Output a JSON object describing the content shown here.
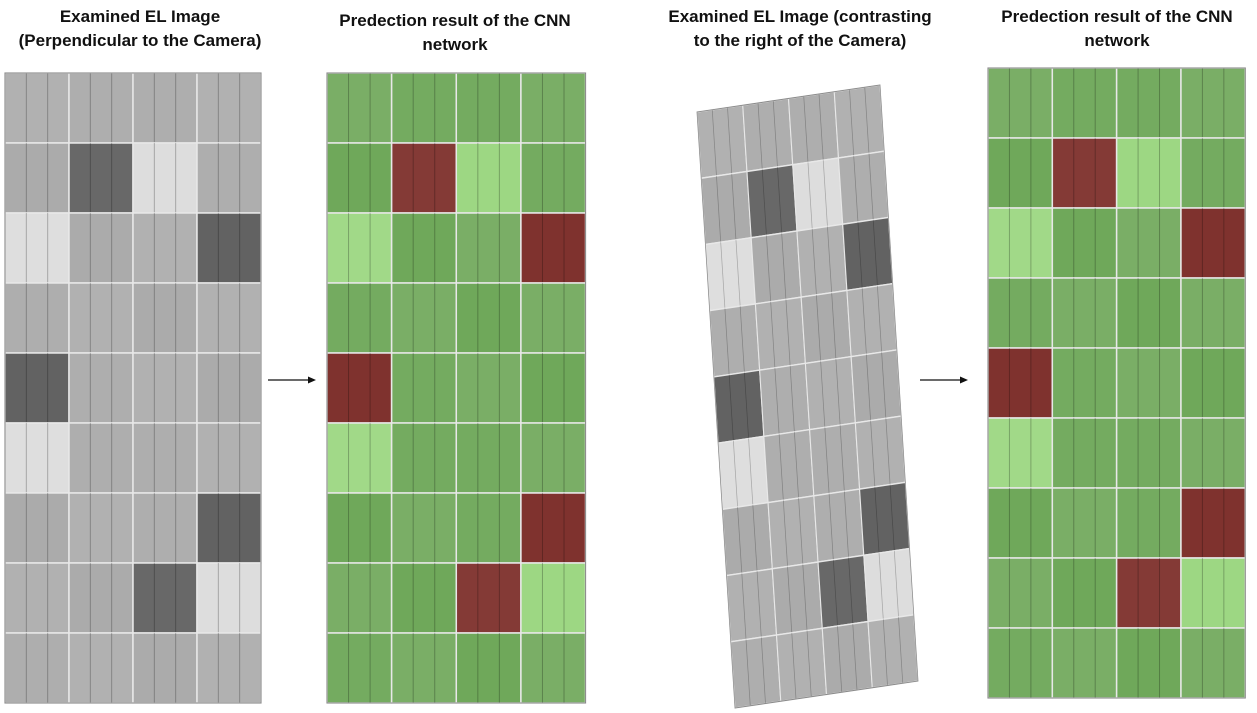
{
  "panels": [
    {
      "title": [
        "Examined EL Image",
        "(Perpendicular to the Camera)"
      ]
    },
    {
      "title": [
        "Predection result of the CNN",
        "network"
      ]
    },
    {
      "title": [
        "Examined EL Image (contrasting",
        "to the right of the Camera)"
      ]
    },
    {
      "title": [
        "Predection result of the CNN",
        "network"
      ]
    }
  ]
}
